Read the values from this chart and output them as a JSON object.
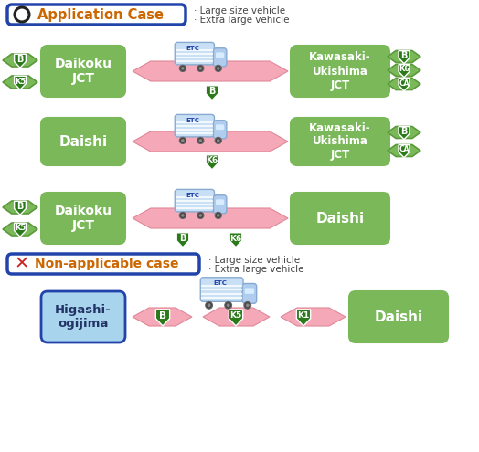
{
  "bg_color": "#ffffff",
  "green_box_color": "#7ab85a",
  "blue_box_color": "#a8d4ee",
  "blue_border_color": "#2244aa",
  "pink_arrow_color": "#f5a8b8",
  "green_arrow_color": "#7ab85a",
  "green_arrow_dark": "#5a9a3a",
  "shield_green": "#2a7a1a",
  "title1": "Application Case",
  "title2": "Non-applicable case",
  "bullet1": "· Large size vehicle",
  "bullet2": "· Extra large vehicle"
}
